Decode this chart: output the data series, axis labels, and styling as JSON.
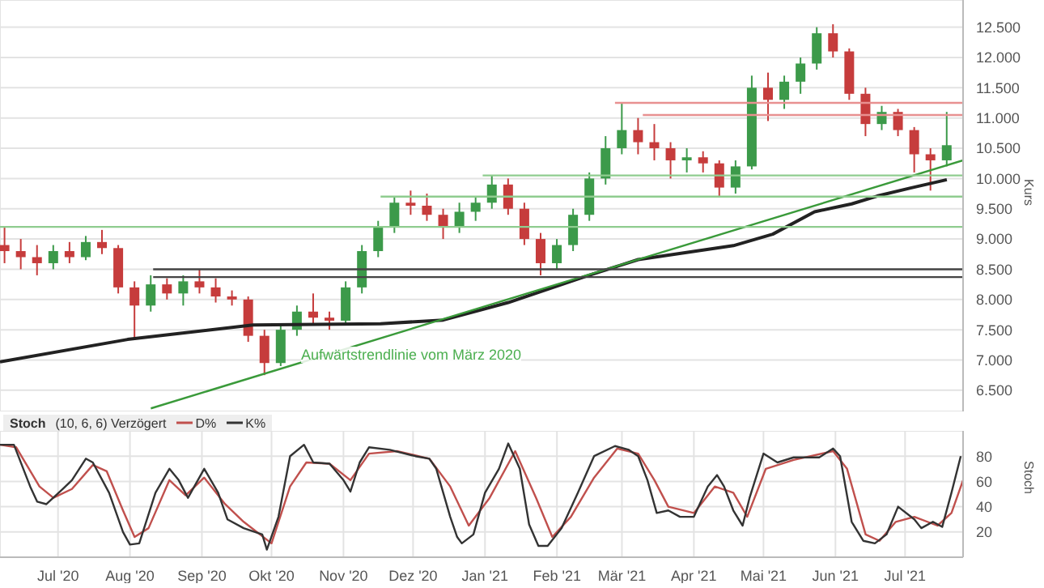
{
  "chart_data": [
    {
      "type": "candlestick",
      "ylabel": "Kurs",
      "xlim": [
        "2020-06-06",
        "2021-07-26"
      ],
      "ylim": [
        6150,
        12950
      ],
      "xticks": [
        {
          "value": "2020-07-01",
          "label": null
        },
        {
          "value": "2020-08-01",
          "label": null
        },
        {
          "value": "2020-09-01",
          "label": null
        },
        {
          "value": "2020-10-01",
          "label": null
        },
        {
          "value": "2020-11-01",
          "label": null
        },
        {
          "value": "2020-12-01",
          "label": null
        },
        {
          "value": "2021-01-01",
          "label": null
        },
        {
          "value": "2021-02-01",
          "label": null
        },
        {
          "value": "2021-03-01",
          "label": null
        },
        {
          "value": "2021-04-01",
          "label": null
        },
        {
          "value": "2021-05-01",
          "label": null
        },
        {
          "value": "2021-06-01",
          "label": null
        },
        {
          "value": "2021-07-01",
          "label": null
        }
      ],
      "yticks": [
        {
          "value": 6500,
          "label": "6.500"
        },
        {
          "value": 7000,
          "label": "7.000"
        },
        {
          "value": 7500,
          "label": "7.500"
        },
        {
          "value": 8000,
          "label": "8.000"
        },
        {
          "value": 8500,
          "label": "8.500"
        },
        {
          "value": 9000,
          "label": "9.000"
        },
        {
          "value": 9500,
          "label": "9.500"
        },
        {
          "value": 10000,
          "label": "10.000"
        },
        {
          "value": 10500,
          "label": "10.500"
        },
        {
          "value": 11000,
          "label": "11.000"
        },
        {
          "value": 11500,
          "label": "11.500"
        },
        {
          "value": 12000,
          "label": "12.000"
        },
        {
          "value": 12500,
          "label": "12.500"
        }
      ],
      "tick_labels": "y",
      "grid": true,
      "x": [
        "2020-06-08",
        "2020-06-15",
        "2020-06-22",
        "2020-06-29",
        "2020-07-06",
        "2020-07-13",
        "2020-07-20",
        "2020-07-27",
        "2020-08-03",
        "2020-08-10",
        "2020-08-17",
        "2020-08-24",
        "2020-08-31",
        "2020-09-07",
        "2020-09-14",
        "2020-09-21",
        "2020-09-28",
        "2020-10-05",
        "2020-10-12",
        "2020-10-19",
        "2020-10-26",
        "2020-11-02",
        "2020-11-09",
        "2020-11-16",
        "2020-11-23",
        "2020-11-30",
        "2020-12-07",
        "2020-12-14",
        "2020-12-21",
        "2020-12-28",
        "2021-01-04",
        "2021-01-11",
        "2021-01-18",
        "2021-01-25",
        "2021-02-01",
        "2021-02-08",
        "2021-02-15",
        "2021-02-22",
        "2021-03-01",
        "2021-03-08",
        "2021-03-15",
        "2021-03-22",
        "2021-03-29",
        "2021-04-05",
        "2021-04-12",
        "2021-04-19",
        "2021-04-26",
        "2021-05-03",
        "2021-05-10",
        "2021-05-17",
        "2021-05-24",
        "2021-05-31",
        "2021-06-07",
        "2021-06-14",
        "2021-06-21",
        "2021-06-28",
        "2021-07-05",
        "2021-07-12",
        "2021-07-19"
      ],
      "ohlc": [
        [
          8900,
          9200,
          8600,
          8800
        ],
        [
          8800,
          9000,
          8500,
          8700
        ],
        [
          8700,
          8900,
          8400,
          8600
        ],
        [
          8600,
          8900,
          8500,
          8800
        ],
        [
          8800,
          8950,
          8600,
          8700
        ],
        [
          8700,
          9050,
          8650,
          8950
        ],
        [
          8950,
          9150,
          8750,
          8850
        ],
        [
          8850,
          8900,
          8100,
          8200
        ],
        [
          8200,
          8300,
          7350,
          7900
        ],
        [
          7900,
          8400,
          7800,
          8250
        ],
        [
          8250,
          8350,
          8000,
          8100
        ],
        [
          8100,
          8400,
          7900,
          8300
        ],
        [
          8300,
          8500,
          8100,
          8200
        ],
        [
          8200,
          8350,
          7950,
          8050
        ],
        [
          8050,
          8150,
          7900,
          8000
        ],
        [
          8000,
          8050,
          7300,
          7400
        ],
        [
          7400,
          7500,
          6750,
          6950
        ],
        [
          6950,
          7600,
          6900,
          7500
        ],
        [
          7500,
          7900,
          7400,
          7800
        ],
        [
          7800,
          8100,
          7600,
          7700
        ],
        [
          7700,
          7800,
          7500,
          7650
        ],
        [
          7650,
          8300,
          7600,
          8200
        ],
        [
          8200,
          8900,
          8100,
          8800
        ],
        [
          8800,
          9300,
          8700,
          9200
        ],
        [
          9200,
          9700,
          9100,
          9600
        ],
        [
          9600,
          9800,
          9400,
          9550
        ],
        [
          9550,
          9750,
          9300,
          9400
        ],
        [
          9400,
          9500,
          9000,
          9200
        ],
        [
          9200,
          9600,
          9100,
          9450
        ],
        [
          9450,
          9700,
          9300,
          9600
        ],
        [
          9600,
          10050,
          9500,
          9900
        ],
        [
          9900,
          10000,
          9400,
          9500
        ],
        [
          9500,
          9600,
          8900,
          9000
        ],
        [
          9000,
          9100,
          8400,
          8600
        ],
        [
          8600,
          9000,
          8500,
          8900
        ],
        [
          8900,
          9500,
          8800,
          9400
        ],
        [
          9400,
          10100,
          9300,
          10000
        ],
        [
          10000,
          10700,
          9900,
          10500
        ],
        [
          10500,
          11250,
          10400,
          10800
        ],
        [
          10800,
          11000,
          10400,
          10600
        ],
        [
          10600,
          10900,
          10300,
          10500
        ],
        [
          10500,
          10600,
          10000,
          10300
        ],
        [
          10300,
          10500,
          10100,
          10350
        ],
        [
          10350,
          10450,
          10100,
          10250
        ],
        [
          10250,
          10300,
          9700,
          9850
        ],
        [
          9850,
          10300,
          9750,
          10200
        ],
        [
          10200,
          11700,
          10150,
          11500
        ],
        [
          11500,
          11750,
          10950,
          11300
        ],
        [
          11300,
          11700,
          11150,
          11600
        ],
        [
          11600,
          12000,
          11400,
          11900
        ],
        [
          11900,
          12500,
          11800,
          12400
        ],
        [
          12400,
          12550,
          12000,
          12100
        ],
        [
          12100,
          12150,
          11300,
          11400
        ],
        [
          11400,
          11500,
          10700,
          10900
        ],
        [
          10900,
          11200,
          10800,
          11100
        ],
        [
          11100,
          11150,
          10700,
          10800
        ],
        [
          10800,
          10850,
          10100,
          10400
        ],
        [
          10400,
          10500,
          9800,
          10300
        ],
        [
          10300,
          11100,
          10200,
          10550
        ]
      ],
      "colors": [
        "#c63c3c",
        "#c63c3c",
        "#c63c3c",
        "#3c9a4a",
        "#c63c3c",
        "#3c9a4a",
        "#c63c3c",
        "#c63c3c",
        "#c63c3c",
        "#3c9a4a",
        "#c63c3c",
        "#3c9a4a",
        "#c63c3c",
        "#c63c3c",
        "#c63c3c",
        "#c63c3c",
        "#c63c3c",
        "#3c9a4a",
        "#3c9a4a",
        "#c63c3c",
        "#c63c3c",
        "#3c9a4a",
        "#3c9a4a",
        "#3c9a4a",
        "#3c9a4a",
        "#c63c3c",
        "#c63c3c",
        "#c63c3c",
        "#3c9a4a",
        "#3c9a4a",
        "#3c9a4a",
        "#c63c3c",
        "#c63c3c",
        "#c63c3c",
        "#3c9a4a",
        "#3c9a4a",
        "#3c9a4a",
        "#3c9a4a",
        "#3c9a4a",
        "#c63c3c",
        "#c63c3c",
        "#c63c3c",
        "#3c9a4a",
        "#c63c3c",
        "#c63c3c",
        "#3c9a4a",
        "#3c9a4a",
        "#c63c3c",
        "#3c9a4a",
        "#3c9a4a",
        "#3c9a4a",
        "#c63c3c",
        "#c63c3c",
        "#c63c3c",
        "#3c9a4a",
        "#c63c3c",
        "#c63c3c",
        "#c63c3c",
        "#3c9a4a"
      ],
      "series": [
        {
          "type": "line",
          "color": "#222222",
          "x": [
            "2020-06-06",
            "2020-07-31",
            "2020-09-23",
            "2020-11-17",
            "2020-12-14",
            "2021-01-11",
            "2021-02-14",
            "2021-03-08",
            "2021-04-18",
            "2021-05-05",
            "2021-05-23",
            "2021-06-08",
            "2021-06-19",
            "2021-07-03",
            "2021-07-19"
          ],
          "values": [
            6970,
            7340,
            7580,
            7600,
            7660,
            7950,
            8390,
            8660,
            8890,
            9080,
            9450,
            9580,
            9710,
            9840,
            9980
          ]
        },
        {
          "type": "line",
          "color": "#3a9a3a",
          "x": [
            "2020-08-10",
            "2021-07-26"
          ],
          "values": [
            6200,
            10300
          ]
        },
        {
          "type": "line",
          "color": "#8fcc8f",
          "x": [
            "2020-06-06",
            "2021-07-26"
          ],
          "values": [
            9200,
            9200
          ]
        },
        {
          "type": "line",
          "color": "#8fcc8f",
          "x": [
            "2020-11-17",
            "2021-07-26"
          ],
          "values": [
            9700,
            9700
          ]
        },
        {
          "type": "line",
          "color": "#8fcc8f",
          "x": [
            "2020-12-31",
            "2021-07-26"
          ],
          "values": [
            10050,
            10050
          ]
        },
        {
          "type": "line",
          "color": "#444444",
          "x": [
            "2020-08-11",
            "2021-07-26"
          ],
          "values": [
            8500,
            8500
          ]
        },
        {
          "type": "line",
          "color": "#444444",
          "x": [
            "2020-08-11",
            "2021-07-26"
          ],
          "values": [
            8370,
            8370
          ]
        },
        {
          "type": "line",
          "color": "#e89090",
          "x": [
            "2021-02-26",
            "2021-07-26"
          ],
          "values": [
            11250,
            11250
          ]
        },
        {
          "type": "line",
          "color": "#e89090",
          "x": [
            "2021-03-10",
            "2021-07-26"
          ],
          "values": [
            11050,
            11050
          ]
        }
      ],
      "annotations": [
        "Aufwärtstrendlinie vom März 2020"
      ]
    },
    {
      "type": "line",
      "title": "Stoch",
      "subtitle": "(10, 6, 6) Verzögert",
      "ylabel": "Stoch",
      "legend": "top left",
      "grid": true,
      "xlim": [
        "2020-06-06",
        "2021-07-26"
      ],
      "ylim": [
        0,
        100
      ],
      "yticks": [
        20,
        40,
        60,
        80
      ],
      "xticks": [
        {
          "value": "2020-07-01",
          "label": "Jul '20"
        },
        {
          "value": "2020-08-01",
          "label": "Aug '20"
        },
        {
          "value": "2020-09-01",
          "label": "Sep '20"
        },
        {
          "value": "2020-10-01",
          "label": "Okt '20"
        },
        {
          "value": "2020-11-01",
          "label": "Nov '20"
        },
        {
          "value": "2020-12-01",
          "label": "Dez '20"
        },
        {
          "value": "2021-01-01",
          "label": "Jan '21"
        },
        {
          "value": "2021-02-01",
          "label": "Feb '21"
        },
        {
          "value": "2021-03-01",
          "label": "Mär '21"
        },
        {
          "value": "2021-04-01",
          "label": "Apr '21"
        },
        {
          "value": "2021-05-01",
          "label": "Mai '21"
        },
        {
          "value": "2021-06-01",
          "label": "Jun '21"
        },
        {
          "value": "2021-07-01",
          "label": "Jul '21"
        }
      ],
      "series": [
        {
          "name": "D%",
          "color": "#c0504d",
          "x": [
            "2020-06-06",
            "2020-06-13",
            "2020-06-23",
            "2020-06-29",
            "2020-07-07",
            "2020-07-16",
            "2020-07-22",
            "2020-07-29",
            "2020-08-03",
            "2020-08-09",
            "2020-08-18",
            "2020-08-25",
            "2020-09-02",
            "2020-09-11",
            "2020-09-19",
            "2020-10-01",
            "2020-10-09",
            "2020-10-16",
            "2020-10-26",
            "2020-11-04",
            "2020-11-12",
            "2020-11-24",
            "2020-12-08",
            "2020-12-17",
            "2020-12-25",
            "2021-01-03",
            "2021-01-14",
            "2021-01-23",
            "2021-01-30",
            "2021-02-07",
            "2021-02-17",
            "2021-02-27",
            "2021-03-08",
            "2021-03-15",
            "2021-03-21",
            "2021-04-01",
            "2021-04-10",
            "2021-04-18",
            "2021-04-24",
            "2021-05-02",
            "2021-05-14",
            "2021-05-31",
            "2021-06-06",
            "2021-06-14",
            "2021-06-20",
            "2021-06-27",
            "2021-07-05",
            "2021-07-15",
            "2021-07-21",
            "2021-07-26"
          ],
          "values": [
            89,
            87,
            56,
            47,
            54,
            73,
            68,
            37,
            16,
            23,
            61,
            49,
            63,
            42,
            28,
            11,
            56,
            75,
            74,
            61,
            82,
            84,
            78,
            56,
            25,
            47,
            84,
            47,
            16,
            32,
            63,
            86,
            82,
            61,
            40,
            35,
            56,
            51,
            32,
            70,
            77,
            84,
            70,
            18,
            13,
            28,
            32,
            25,
            35,
            61
          ]
        },
        {
          "name": "K%",
          "color": "#333333",
          "x": [
            "2020-06-06",
            "2020-06-12",
            "2020-06-19",
            "2020-06-22",
            "2020-06-26",
            "2020-07-03",
            "2020-07-07",
            "2020-07-13",
            "2020-07-16",
            "2020-07-23",
            "2020-07-29",
            "2020-08-01",
            "2020-08-05",
            "2020-08-12",
            "2020-08-18",
            "2020-08-22",
            "2020-08-26",
            "2020-09-02",
            "2020-09-08",
            "2020-09-12",
            "2020-09-19",
            "2020-09-27",
            "2020-09-29",
            "2020-10-04",
            "2020-10-09",
            "2020-10-15",
            "2020-10-19",
            "2020-10-26",
            "2020-11-01",
            "2020-11-04",
            "2020-11-08",
            "2020-11-12",
            "2020-11-21",
            "2020-12-02",
            "2020-12-08",
            "2020-12-11",
            "2020-12-17",
            "2020-12-20",
            "2020-12-22",
            "2020-12-27",
            "2021-01-01",
            "2021-01-07",
            "2021-01-11",
            "2021-01-16",
            "2021-01-20",
            "2021-01-24",
            "2021-01-28",
            "2021-02-03",
            "2021-02-10",
            "2021-02-17",
            "2021-02-26",
            "2021-03-04",
            "2021-03-08",
            "2021-03-12",
            "2021-03-16",
            "2021-03-21",
            "2021-03-26",
            "2021-04-01",
            "2021-04-07",
            "2021-04-11",
            "2021-04-14",
            "2021-04-18",
            "2021-04-22",
            "2021-04-25",
            "2021-05-01",
            "2021-05-07",
            "2021-05-14",
            "2021-05-25",
            "2021-05-31",
            "2021-06-03",
            "2021-06-08",
            "2021-06-13",
            "2021-06-18",
            "2021-06-23",
            "2021-06-28",
            "2021-07-05",
            "2021-07-08",
            "2021-07-13",
            "2021-07-17",
            "2021-07-21",
            "2021-07-25"
          ],
          "values": [
            89,
            89,
            56,
            44,
            42,
            54,
            61,
            78,
            75,
            51,
            20,
            10,
            11,
            51,
            70,
            61,
            47,
            70,
            51,
            30,
            23,
            18,
            6,
            32,
            80,
            89,
            75,
            74,
            61,
            52,
            75,
            87,
            85,
            80,
            78,
            70,
            32,
            16,
            11,
            18,
            51,
            70,
            90,
            70,
            26,
            9,
            9,
            23,
            51,
            80,
            88,
            85,
            80,
            61,
            35,
            37,
            32,
            32,
            56,
            65,
            56,
            37,
            25,
            47,
            82,
            75,
            79,
            79,
            86,
            80,
            28,
            13,
            11,
            18,
            40,
            30,
            23,
            28,
            24,
            51,
            80
          ]
        }
      ]
    }
  ]
}
